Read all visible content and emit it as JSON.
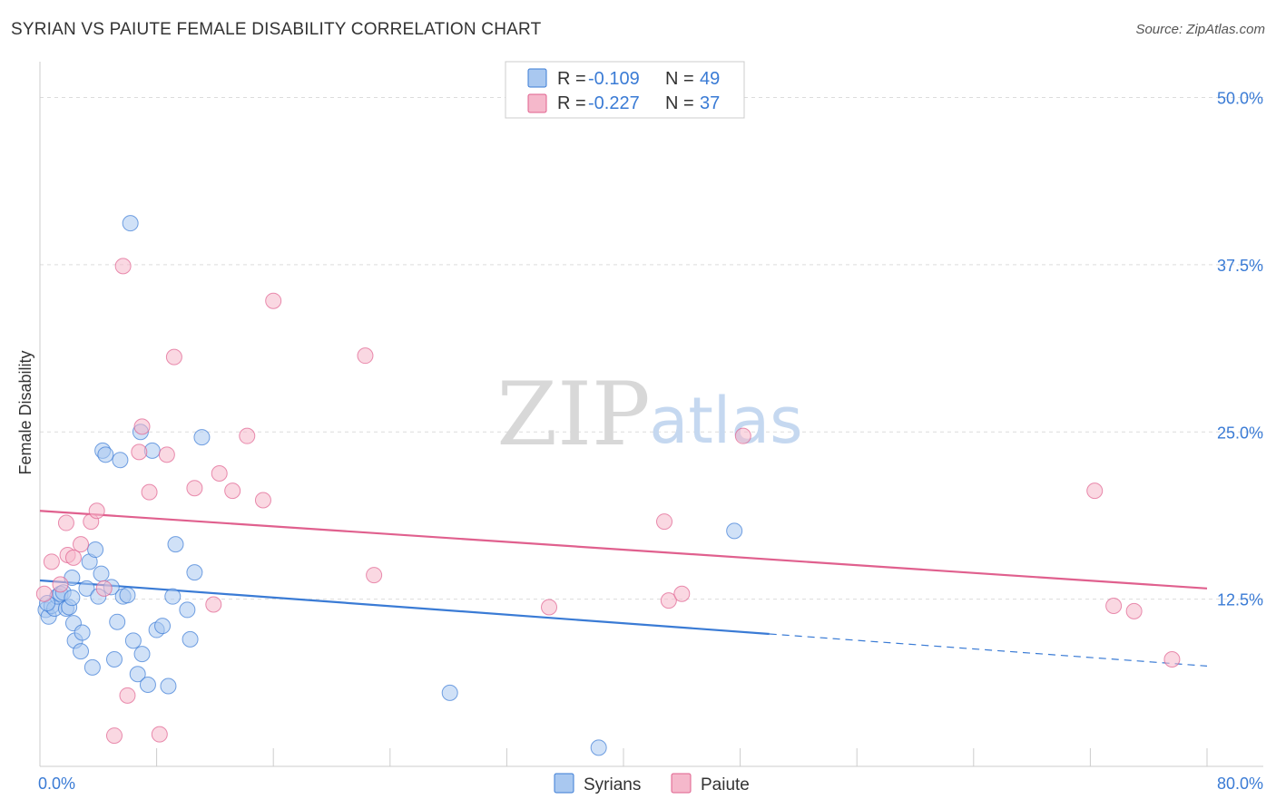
{
  "title": "SYRIAN VS PAIUTE FEMALE DISABILITY CORRELATION CHART",
  "source": "Source: ZipAtlas.com",
  "chart_data": {
    "type": "scatter",
    "xlabel": "",
    "ylabel": "Female Disability",
    "xlim": [
      0,
      80
    ],
    "ylim": [
      0,
      52
    ],
    "x_tick_labels": [
      "0.0%",
      "80.0%"
    ],
    "y_ticks": [
      12.5,
      25.0,
      37.5,
      50.0
    ],
    "y_tick_labels": [
      "12.5%",
      "25.0%",
      "37.5%",
      "50.0%"
    ],
    "watermark": {
      "zip": "ZIP",
      "atlas": "atlas"
    },
    "colors": {
      "syrians": "#3a7bd5",
      "paiute": "#e0608e",
      "syrians_fill": "#a9c8f0",
      "paiute_fill": "#f5b8cb"
    },
    "legend": {
      "r_label": "R =",
      "n_label": "N =",
      "entries": [
        {
          "name": "Syrians",
          "r": "-0.109",
          "n": "49"
        },
        {
          "name": "Paiute",
          "r": "-0.227",
          "n": "37"
        }
      ]
    },
    "series": [
      {
        "name": "Syrians",
        "points": [
          [
            0.4,
            11.7
          ],
          [
            0.6,
            11.2
          ],
          [
            0.8,
            12.0
          ],
          [
            1.0,
            11.8
          ],
          [
            1.2,
            12.7
          ],
          [
            1.4,
            12.9
          ],
          [
            1.6,
            13.0
          ],
          [
            1.8,
            11.8
          ],
          [
            2.0,
            11.9
          ],
          [
            2.2,
            12.6
          ],
          [
            2.2,
            14.1
          ],
          [
            2.3,
            10.7
          ],
          [
            2.4,
            9.4
          ],
          [
            2.8,
            8.6
          ],
          [
            2.9,
            10.0
          ],
          [
            3.2,
            13.3
          ],
          [
            3.4,
            15.3
          ],
          [
            3.6,
            7.4
          ],
          [
            3.8,
            16.2
          ],
          [
            4.0,
            12.7
          ],
          [
            4.2,
            14.4
          ],
          [
            4.3,
            23.6
          ],
          [
            4.5,
            23.3
          ],
          [
            4.9,
            13.4
          ],
          [
            5.1,
            8.0
          ],
          [
            5.3,
            10.8
          ],
          [
            5.5,
            22.9
          ],
          [
            5.7,
            12.7
          ],
          [
            6.0,
            12.8
          ],
          [
            6.2,
            40.6
          ],
          [
            6.4,
            9.4
          ],
          [
            6.7,
            6.9
          ],
          [
            6.9,
            25.0
          ],
          [
            7.0,
            8.4
          ],
          [
            7.4,
            6.1
          ],
          [
            7.7,
            23.6
          ],
          [
            8.0,
            10.2
          ],
          [
            8.4,
            10.5
          ],
          [
            8.8,
            6.0
          ],
          [
            9.1,
            12.7
          ],
          [
            9.3,
            16.6
          ],
          [
            10.1,
            11.7
          ],
          [
            10.3,
            9.5
          ],
          [
            10.6,
            14.5
          ],
          [
            11.1,
            24.6
          ],
          [
            28.1,
            5.5
          ],
          [
            38.3,
            1.4
          ],
          [
            47.6,
            17.6
          ],
          [
            0.5,
            12.2
          ]
        ]
      },
      {
        "name": "Paiute",
        "points": [
          [
            0.3,
            12.9
          ],
          [
            0.8,
            15.3
          ],
          [
            1.4,
            13.6
          ],
          [
            1.8,
            18.2
          ],
          [
            1.9,
            15.8
          ],
          [
            2.3,
            15.6
          ],
          [
            2.8,
            16.6
          ],
          [
            3.5,
            18.3
          ],
          [
            3.9,
            19.1
          ],
          [
            4.4,
            13.3
          ],
          [
            5.1,
            2.3
          ],
          [
            5.7,
            37.4
          ],
          [
            6.0,
            5.3
          ],
          [
            6.8,
            23.5
          ],
          [
            7.0,
            25.4
          ],
          [
            7.5,
            20.5
          ],
          [
            8.2,
            2.4
          ],
          [
            8.7,
            23.3
          ],
          [
            9.2,
            30.6
          ],
          [
            10.6,
            20.8
          ],
          [
            11.9,
            12.1
          ],
          [
            12.3,
            21.9
          ],
          [
            13.2,
            20.6
          ],
          [
            14.2,
            24.7
          ],
          [
            15.3,
            19.9
          ],
          [
            16.0,
            34.8
          ],
          [
            22.3,
            30.7
          ],
          [
            22.9,
            14.3
          ],
          [
            34.9,
            11.9
          ],
          [
            42.8,
            18.3
          ],
          [
            43.1,
            12.4
          ],
          [
            44.0,
            12.9
          ],
          [
            48.2,
            24.7
          ],
          [
            72.3,
            20.6
          ],
          [
            73.6,
            12.0
          ],
          [
            75.0,
            11.6
          ],
          [
            77.6,
            8.0
          ]
        ]
      }
    ],
    "trend_lines": [
      {
        "name": "Syrians",
        "solid": [
          [
            0,
            13.9
          ],
          [
            50,
            9.9
          ]
        ],
        "dashed": [
          [
            50,
            9.9
          ],
          [
            80,
            7.5
          ]
        ]
      },
      {
        "name": "Paiute",
        "solid": [
          [
            0,
            19.1
          ],
          [
            80,
            13.3
          ]
        ]
      }
    ]
  }
}
